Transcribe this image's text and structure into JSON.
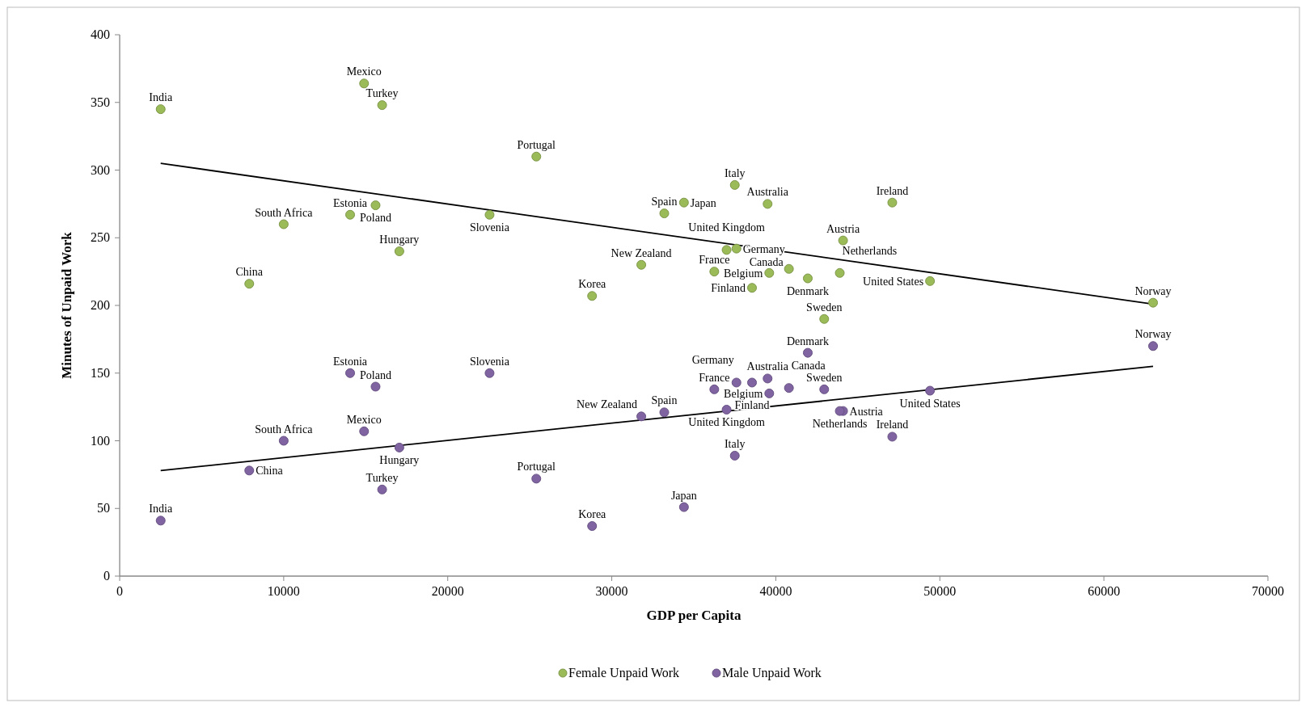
{
  "chart_data": {
    "type": "scatter",
    "xlabel": "GDP per Capita",
    "ylabel": "Minutes of Unpaid Work",
    "xlim": [
      0,
      70000
    ],
    "xticks": [
      0,
      10000,
      20000,
      30000,
      40000,
      50000,
      60000,
      70000
    ],
    "ylim": [
      0,
      400
    ],
    "yticks": [
      0,
      50,
      100,
      150,
      200,
      250,
      300,
      350,
      400
    ],
    "grid": false,
    "legend": "bottom",
    "marker": "circle",
    "series": [
      {
        "name": "Female Unpaid Work",
        "color": "#9bbb59",
        "x": [
          2500,
          14900,
          16000,
          25400,
          7900,
          10000,
          14050,
          15600,
          17050,
          22550,
          28800,
          31800,
          33200,
          34400,
          37500,
          39500,
          47100,
          44100,
          49400,
          63000,
          42950,
          36250,
          37000,
          37600,
          39600,
          40800,
          41950,
          43900,
          38550
        ],
        "values": [
          345,
          364,
          348,
          310,
          216,
          260,
          267,
          274,
          240,
          267,
          207,
          230,
          268,
          276,
          289,
          275,
          276,
          248,
          218,
          202,
          190,
          225,
          241,
          242,
          224,
          227,
          220,
          224,
          213
        ]
      },
      {
        "name": "Male Unpaid Work",
        "color": "#8064a2",
        "x": [
          2500,
          14900,
          16000,
          25400,
          7900,
          10000,
          14050,
          15600,
          17050,
          22550,
          28800,
          31800,
          33200,
          34400,
          37500,
          39500,
          47100,
          44100,
          49400,
          63000,
          42950,
          36250,
          37000,
          37600,
          39600,
          40800,
          41950,
          43900,
          38550
        ],
        "values": [
          41,
          107,
          64,
          72,
          78,
          100,
          150,
          140,
          95,
          150,
          37,
          118,
          121,
          51,
          89,
          146,
          103,
          122,
          137,
          170,
          138,
          138,
          123,
          143,
          135,
          139,
          165,
          122,
          143
        ]
      },
      {
        "type": "line",
        "marker": "none",
        "color": "#000000",
        "x": [
          2500,
          63000
        ],
        "values": [
          305,
          201
        ]
      },
      {
        "type": "line",
        "marker": "none",
        "color": "#000000",
        "x": [
          2500,
          63000
        ],
        "values": [
          78,
          155
        ]
      }
    ],
    "annotations": [
      {
        "text": "India",
        "x": 2500,
        "y": 345
      },
      {
        "text": "Mexico",
        "x": 14900,
        "y": 364
      },
      {
        "text": "Turkey",
        "x": 16000,
        "y": 348
      },
      {
        "text": "Portugal",
        "x": 25400,
        "y": 310
      },
      {
        "text": "China",
        "x": 7900,
        "y": 216
      },
      {
        "text": "South Africa",
        "x": 10000,
        "y": 260
      },
      {
        "text": "Estonia",
        "x": 14050,
        "y": 267
      },
      {
        "text": "Poland",
        "x": 15600,
        "y": 274
      },
      {
        "text": "Hungary",
        "x": 17050,
        "y": 240
      },
      {
        "text": "Slovenia",
        "x": 22550,
        "y": 267
      },
      {
        "text": "Korea",
        "x": 28800,
        "y": 207
      },
      {
        "text": "New Zealand",
        "x": 31800,
        "y": 230
      },
      {
        "text": "Spain",
        "x": 33200,
        "y": 268
      },
      {
        "text": "Japan",
        "x": 34400,
        "y": 276
      },
      {
        "text": "Italy",
        "x": 37500,
        "y": 289
      },
      {
        "text": "Australia",
        "x": 39500,
        "y": 275
      },
      {
        "text": "Ireland",
        "x": 47100,
        "y": 276
      },
      {
        "text": "Austria",
        "x": 44100,
        "y": 248
      },
      {
        "text": "United States",
        "x": 49400,
        "y": 218
      },
      {
        "text": "Norway",
        "x": 63000,
        "y": 202
      },
      {
        "text": "Sweden",
        "x": 42950,
        "y": 190
      },
      {
        "text": "France",
        "x": 36250,
        "y": 225
      },
      {
        "text": "United Kingdom",
        "x": 37000,
        "y": 241
      },
      {
        "text": "Germany",
        "x": 37600,
        "y": 242
      },
      {
        "text": "Belgium",
        "x": 39600,
        "y": 224
      },
      {
        "text": "Canada",
        "x": 40800,
        "y": 227
      },
      {
        "text": "Denmark",
        "x": 41950,
        "y": 220
      },
      {
        "text": "Netherlands",
        "x": 43900,
        "y": 224
      },
      {
        "text": "Finland",
        "x": 38550,
        "y": 213
      },
      {
        "text": "India",
        "x": 2500,
        "y": 41
      },
      {
        "text": "Mexico",
        "x": 14900,
        "y": 107
      },
      {
        "text": "Turkey",
        "x": 16000,
        "y": 64
      },
      {
        "text": "Portugal",
        "x": 25400,
        "y": 72
      },
      {
        "text": "China",
        "x": 7900,
        "y": 78
      },
      {
        "text": "South Africa",
        "x": 10000,
        "y": 100
      },
      {
        "text": "Estonia",
        "x": 14050,
        "y": 150
      },
      {
        "text": "Poland",
        "x": 15600,
        "y": 140
      },
      {
        "text": "Hungary",
        "x": 17050,
        "y": 95
      },
      {
        "text": "Slovenia",
        "x": 22550,
        "y": 150
      },
      {
        "text": "Korea",
        "x": 28800,
        "y": 37
      },
      {
        "text": "New Zealand",
        "x": 31800,
        "y": 118
      },
      {
        "text": "Spain",
        "x": 33200,
        "y": 121
      },
      {
        "text": "Japan",
        "x": 34400,
        "y": 51
      },
      {
        "text": "Italy",
        "x": 37500,
        "y": 89
      },
      {
        "text": "Australia",
        "x": 39500,
        "y": 146
      },
      {
        "text": "Ireland",
        "x": 47100,
        "y": 103
      },
      {
        "text": "Austria",
        "x": 44100,
        "y": 122
      },
      {
        "text": "United States",
        "x": 49400,
        "y": 137
      },
      {
        "text": "Norway",
        "x": 63000,
        "y": 170
      },
      {
        "text": "Sweden",
        "x": 42950,
        "y": 138
      },
      {
        "text": "France",
        "x": 36250,
        "y": 138
      },
      {
        "text": "United Kingdom",
        "x": 37000,
        "y": 123
      },
      {
        "text": "Germany",
        "x": 37600,
        "y": 143
      },
      {
        "text": "Belgium",
        "x": 39600,
        "y": 135
      },
      {
        "text": "Canada",
        "x": 40800,
        "y": 139
      },
      {
        "text": "Denmark",
        "x": 41950,
        "y": 165
      },
      {
        "text": "Netherlands",
        "x": 43900,
        "y": 122
      },
      {
        "text": "Finland",
        "x": 38550,
        "y": 143
      }
    ]
  }
}
